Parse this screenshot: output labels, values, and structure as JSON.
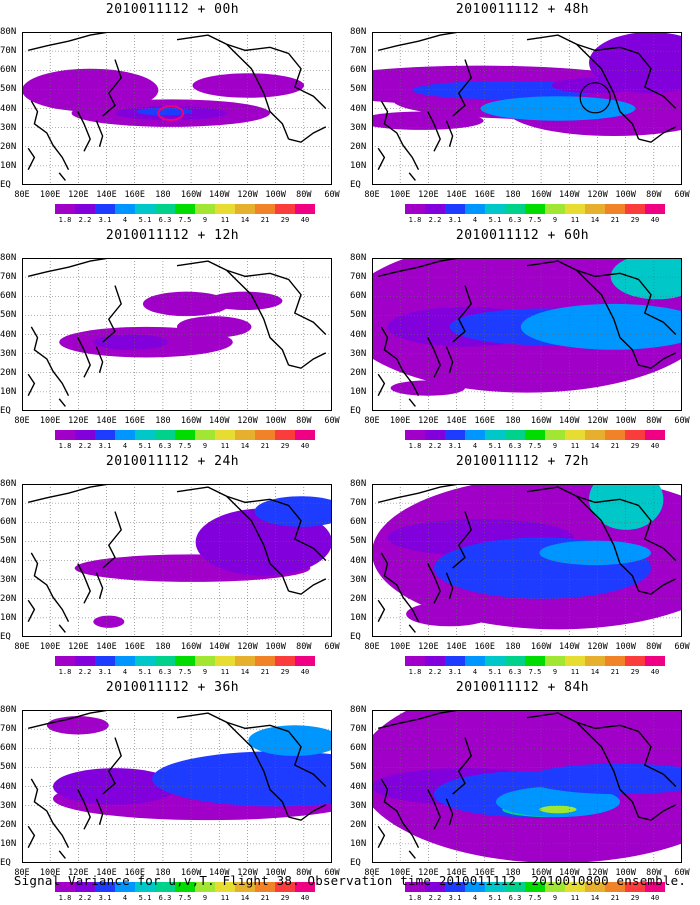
{
  "panels": [
    {
      "title": "2010011112 + 00h"
    },
    {
      "title": "2010011112 + 48h"
    },
    {
      "title": "2010011112 + 12h"
    },
    {
      "title": "2010011112 + 60h"
    },
    {
      "title": "2010011112 + 24h"
    },
    {
      "title": "2010011112 + 72h"
    },
    {
      "title": "2010011112 + 36h"
    },
    {
      "title": "2010011112 + 84h"
    }
  ],
  "lat_labels": [
    "80N",
    "70N",
    "60N",
    "50N",
    "40N",
    "30N",
    "20N",
    "10N",
    "EQ"
  ],
  "lon_labels": [
    "80E",
    "100E",
    "120E",
    "140E",
    "160E",
    "180",
    "160W",
    "140W",
    "120W",
    "100W",
    "80W",
    "60W"
  ],
  "colorbar": {
    "levels": [
      "1.8",
      "2.2",
      "3.1",
      "4",
      "5.1",
      "6.3",
      "7.5",
      "9",
      "11",
      "14",
      "21",
      "29",
      "40"
    ],
    "colors": [
      "#a000c8",
      "#8200dc",
      "#1e3cff",
      "#0096ff",
      "#00c8c8",
      "#00d28c",
      "#00dc00",
      "#a0e632",
      "#e6dc32",
      "#e6af2d",
      "#f08228",
      "#fa3c3c",
      "#f00082"
    ]
  },
  "caption": "Signal Variance for u,v,T. Flight 38. Observation time 2010011112. 2010010800 ensemble."
}
